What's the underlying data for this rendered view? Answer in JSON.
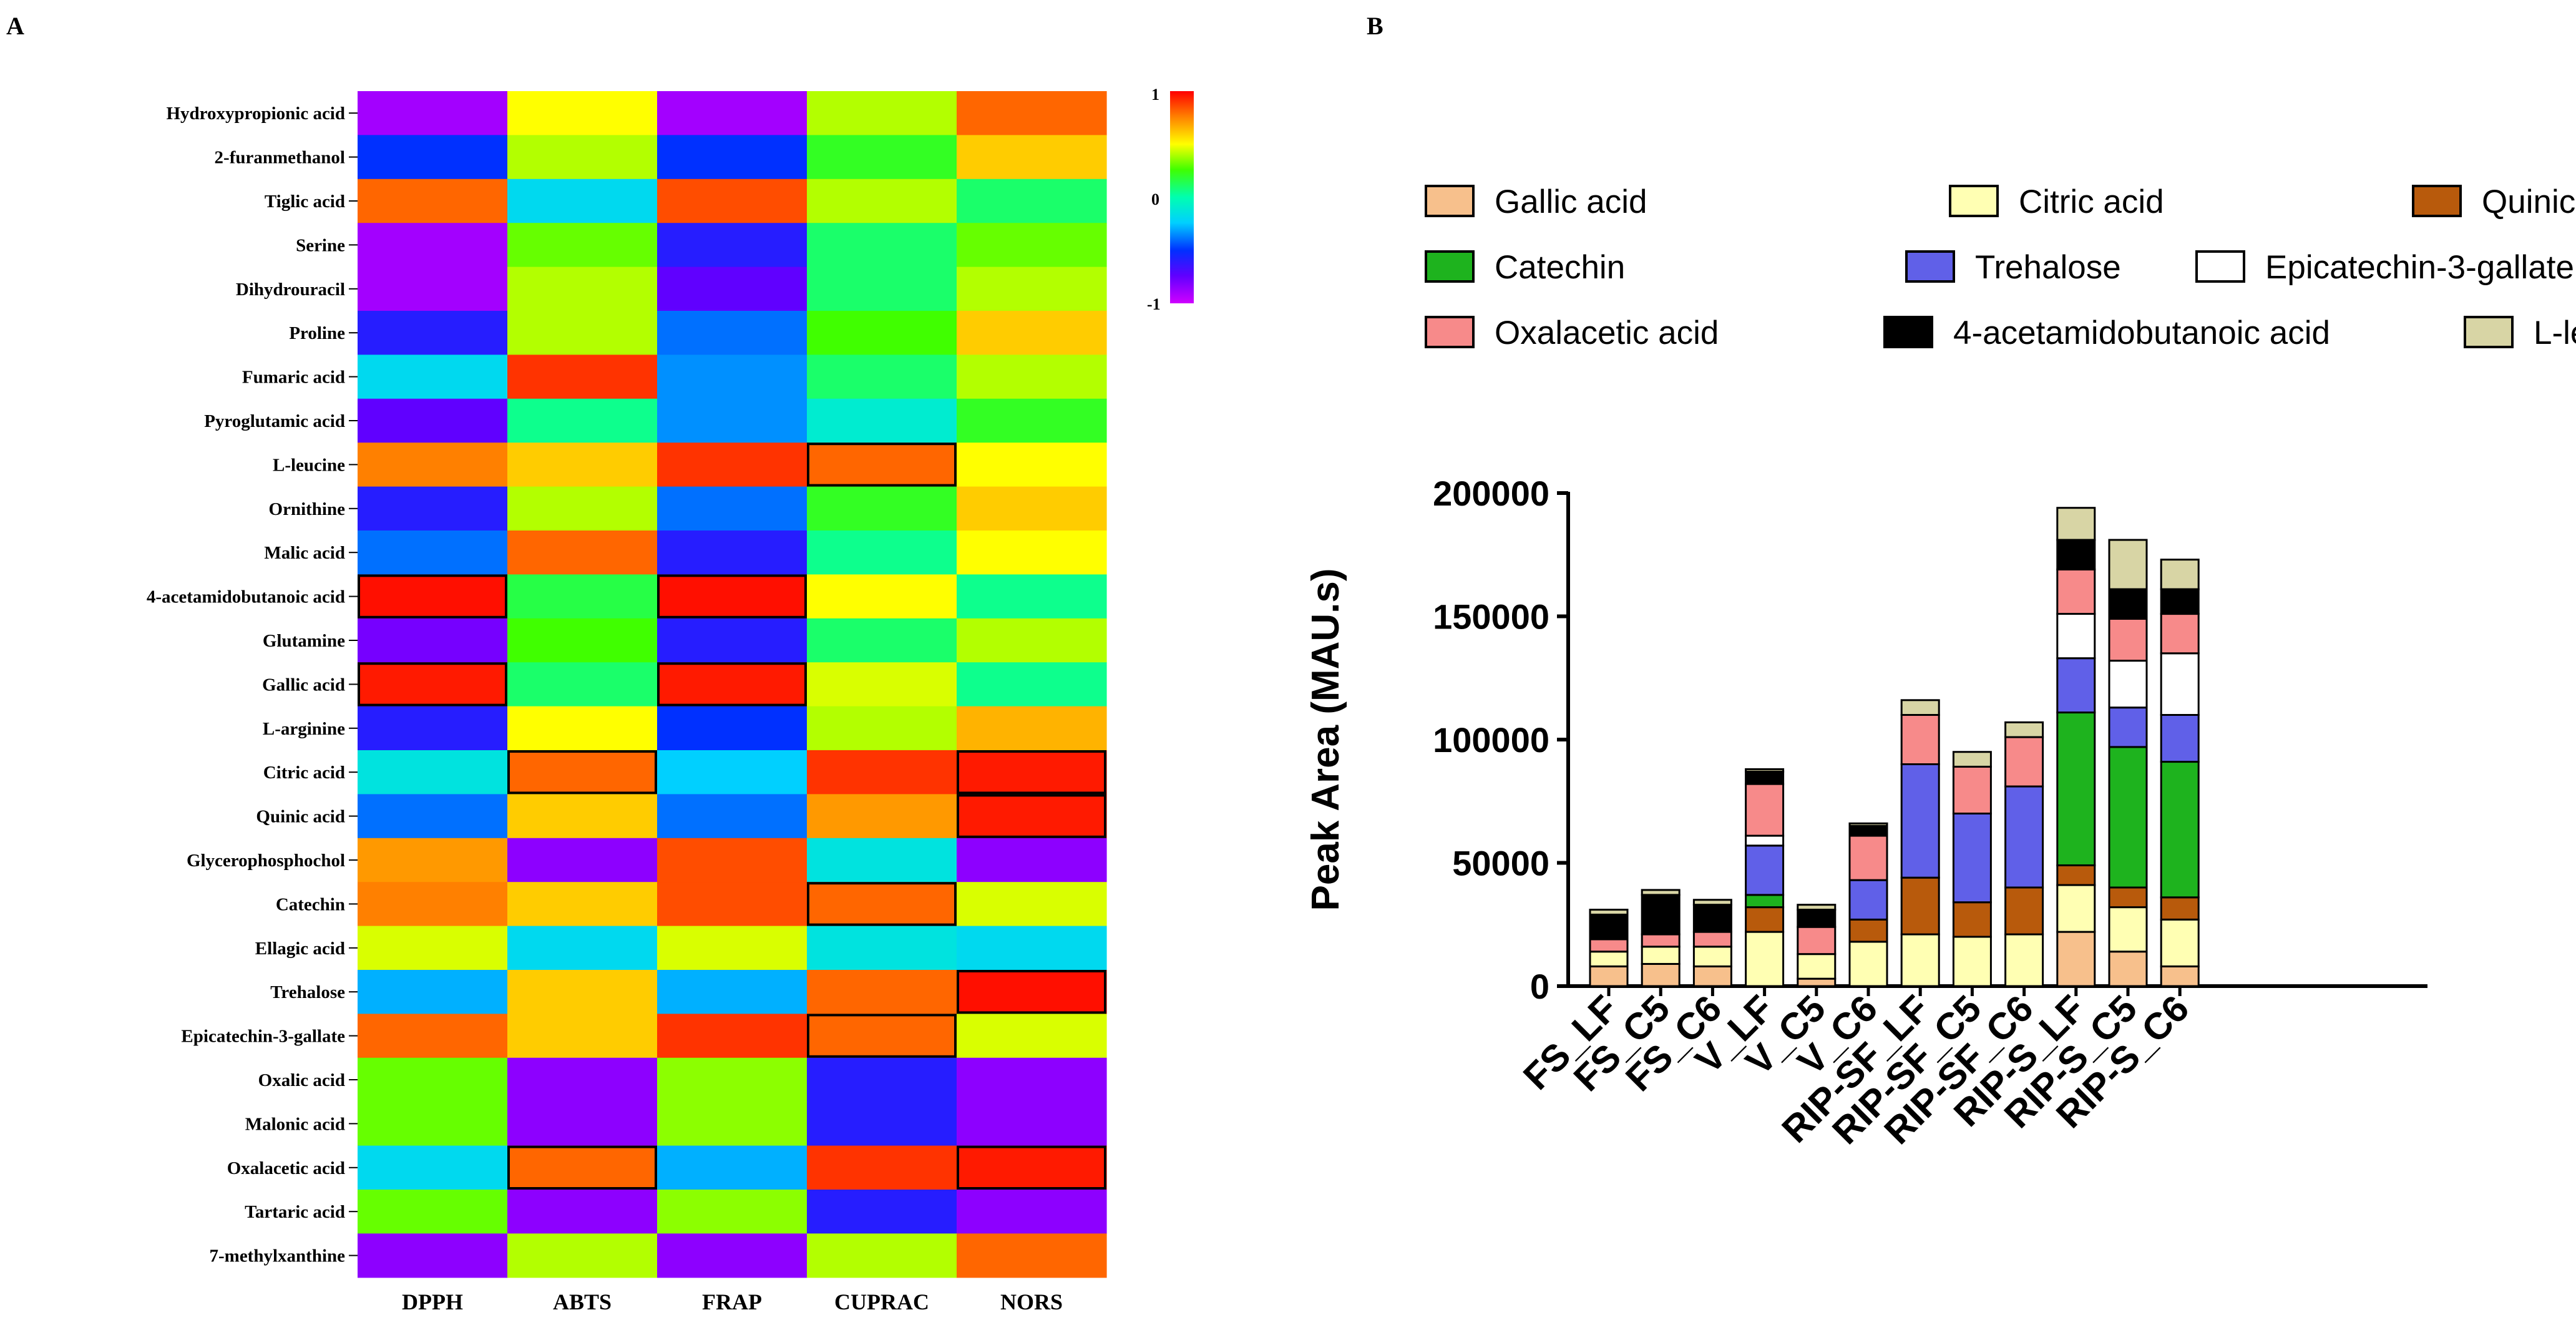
{
  "panels": {
    "a": "A",
    "b": "B"
  },
  "chart_data": [
    {
      "type": "heatmap",
      "title": "",
      "rows": [
        "Hydroxypropionic acid",
        "2-furanmethanol",
        "Tiglic acid",
        "Serine",
        "Dihydrouracil",
        "Proline",
        "Fumaric acid",
        "Pyroglutamic acid",
        "L-leucine",
        "Ornithine",
        "Malic acid",
        "4-acetamidobutanoic acid",
        "Glutamine",
        "Gallic acid",
        "L-arginine",
        "Citric acid",
        "Quinic acid",
        "Glycerophosphochol",
        "Catechin",
        "Ellagic acid",
        "Trehalose",
        "Epicatechin-3-gallate",
        "Oxalic acid",
        "Malonic acid",
        "Oxalacetic acid",
        "Tartaric acid",
        "7-methylxanthine"
      ],
      "columns": [
        "DPPH",
        "ABTS",
        "FRAP",
        "CUPRAC",
        "NORS"
      ],
      "values": [
        [
          -0.9,
          0.5,
          -0.9,
          0.4,
          0.8
        ],
        [
          -0.5,
          0.4,
          -0.5,
          0.2,
          0.6
        ],
        [
          0.8,
          -0.2,
          0.85,
          0.4,
          0.1
        ],
        [
          -0.9,
          0.3,
          -0.6,
          0.1,
          0.3
        ],
        [
          -0.9,
          0.4,
          -0.75,
          0.1,
          0.4
        ],
        [
          -0.6,
          0.4,
          -0.4,
          0.25,
          0.6
        ],
        [
          -0.2,
          0.9,
          -0.35,
          0.1,
          0.4
        ],
        [
          -0.75,
          0.05,
          -0.35,
          -0.1,
          0.2
        ],
        [
          0.75,
          0.6,
          0.9,
          0.8,
          0.5
        ],
        [
          -0.6,
          0.4,
          -0.4,
          0.2,
          0.6
        ],
        [
          -0.4,
          0.8,
          -0.6,
          0.05,
          0.5
        ],
        [
          0.97,
          0.15,
          0.97,
          0.5,
          0.05
        ],
        [
          -0.8,
          0.25,
          -0.6,
          0.1,
          0.4
        ],
        [
          0.95,
          0.1,
          0.95,
          0.45,
          0.05
        ],
        [
          -0.6,
          0.5,
          -0.5,
          0.4,
          0.65
        ],
        [
          -0.15,
          0.8,
          -0.25,
          0.9,
          0.95
        ],
        [
          -0.4,
          0.6,
          -0.4,
          0.7,
          0.95
        ],
        [
          0.7,
          -0.85,
          0.85,
          -0.15,
          -0.85
        ],
        [
          0.75,
          0.6,
          0.85,
          0.8,
          0.45
        ],
        [
          0.45,
          -0.2,
          0.45,
          -0.15,
          -0.2
        ],
        [
          -0.3,
          0.6,
          -0.3,
          0.8,
          0.97
        ],
        [
          0.8,
          0.6,
          0.9,
          0.8,
          0.45
        ],
        [
          0.3,
          -0.85,
          0.35,
          -0.6,
          -0.85
        ],
        [
          0.3,
          -0.85,
          0.35,
          -0.6,
          -0.85
        ],
        [
          -0.2,
          0.8,
          -0.3,
          0.9,
          0.95
        ],
        [
          0.3,
          -0.85,
          0.35,
          -0.6,
          -0.85
        ],
        [
          -0.85,
          0.4,
          -0.85,
          0.4,
          0.8
        ]
      ],
      "highlighted_cells": [
        [
          8,
          3
        ],
        [
          11,
          0
        ],
        [
          11,
          2
        ],
        [
          13,
          0
        ],
        [
          13,
          2
        ],
        [
          15,
          1
        ],
        [
          15,
          4
        ],
        [
          16,
          4
        ],
        [
          18,
          3
        ],
        [
          20,
          4
        ],
        [
          21,
          3
        ],
        [
          24,
          1
        ],
        [
          24,
          4
        ]
      ],
      "colorbar": {
        "range": [
          -1,
          1
        ],
        "ticks": [
          "1",
          "0",
          "-1"
        ]
      }
    },
    {
      "type": "bar",
      "stacked": true,
      "title": "",
      "xlabel": "",
      "ylabel": "Peak Area (MAU.s)",
      "ylim": [
        0,
        200000
      ],
      "yticks": [
        "0",
        "50000",
        "100000",
        "150000",
        "200000"
      ],
      "categories": [
        "FS_LF",
        "FS_C5",
        "FS_C6",
        "V_LF",
        "V_C5",
        "V_C6",
        "RIP-SF_LF",
        "RIP-SF_C5",
        "RIP-SF_C6",
        "RIP-S_LF",
        "RIP-S_C5",
        "RIP-S_C6"
      ],
      "series": [
        {
          "name": "Gallic acid",
          "color": "#f7c08c",
          "values": [
            8000,
            9000,
            8000,
            0,
            3000,
            0,
            0,
            0,
            0,
            22000,
            14000,
            8000
          ]
        },
        {
          "name": "Citric acid",
          "color": "#ffffb3",
          "values": [
            6000,
            7000,
            8000,
            22000,
            10000,
            18000,
            21000,
            20000,
            21000,
            19000,
            18000,
            19000
          ]
        },
        {
          "name": "Quinic acid",
          "color": "#b85a0c",
          "values": [
            0,
            0,
            0,
            10000,
            0,
            9000,
            23000,
            14000,
            19000,
            8000,
            8000,
            9000
          ]
        },
        {
          "name": "Catechin",
          "color": "#1eb31e",
          "values": [
            0,
            0,
            0,
            5000,
            0,
            0,
            0,
            0,
            0,
            62000,
            57000,
            55000
          ]
        },
        {
          "name": "Trehalose",
          "color": "#6060e8",
          "values": [
            0,
            0,
            0,
            20000,
            0,
            16000,
            46000,
            36000,
            41000,
            22000,
            16000,
            19000
          ]
        },
        {
          "name": "Epicatechin-3-gallate",
          "color": "#ffffff",
          "values": [
            0,
            0,
            0,
            4000,
            0,
            0,
            0,
            0,
            0,
            18000,
            19000,
            25000
          ]
        },
        {
          "name": "Oxalacetic acid",
          "color": "#f78a8a",
          "values": [
            5000,
            5000,
            6000,
            21000,
            11000,
            18000,
            20000,
            19000,
            20000,
            18000,
            17000,
            16000
          ]
        },
        {
          "name": "4-acetamidobutanoic acid",
          "color": "#000000",
          "values": [
            10000,
            16000,
            11000,
            5000,
            7000,
            4000,
            0,
            0,
            0,
            12000,
            12000,
            10000
          ]
        },
        {
          "name": "L-leucine",
          "color": "#d8d5a5",
          "values": [
            2000,
            2000,
            2000,
            1000,
            2000,
            1000,
            6000,
            6000,
            6000,
            13000,
            20000,
            12000
          ]
        }
      ]
    }
  ]
}
